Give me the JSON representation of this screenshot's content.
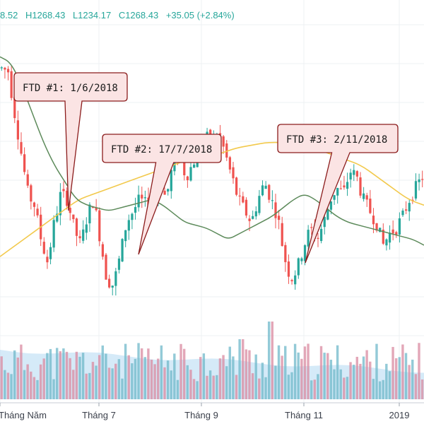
{
  "legend": {
    "open": "8.52",
    "high": "H1268.43",
    "low": "L1234.17",
    "close": "C1268.43",
    "change": "+35.05 (+2.84%)"
  },
  "colors": {
    "up": "#26a69a",
    "down": "#ef5350",
    "ma_short": "#5c8a5a",
    "ma_long": "#f2c94c",
    "callout_fill": "#fbe4e4",
    "callout_stroke": "#8b1c1c",
    "volume_area": "#b3d9f2"
  },
  "chart_data": {
    "type": "candlestick",
    "x_ticks": [
      "Tháng Năm",
      "Tháng 7",
      "Tháng 9",
      "Tháng 11",
      "2019"
    ],
    "annotations": [
      {
        "label": "FTD #1: 1/6/2018",
        "date": "2018-06-01"
      },
      {
        "label": "FTD #2: 17/7/2018",
        "date": "2018-07-17"
      },
      {
        "label": "FTD #3: 2/11/2018",
        "date": "2018-11-02"
      }
    ],
    "last_bar": {
      "high": 1268.43,
      "low": 1234.17,
      "close": 1268.43,
      "change": 35.05,
      "change_pct": 2.84
    },
    "price_path": [
      1230,
      1225,
      1150,
      1080,
      1010,
      990,
      930,
      890,
      960,
      1010,
      1000,
      950,
      920,
      970,
      1000,
      930,
      860,
      850,
      900,
      960,
      980,
      1000,
      990,
      1000,
      1040,
      1000,
      1060,
      1080,
      1040,
      1060,
      1090,
      1110,
      1100,
      1120,
      1080,
      1040,
      1000,
      980,
      960,
      1000,
      1030,
      1000,
      970,
      900,
      860,
      880,
      920,
      950,
      930,
      960,
      1000,
      1020,
      1010,
      1050,
      1040,
      1000,
      980,
      960,
      920,
      940,
      950,
      970,
      1000,
      1020,
      1040
    ],
    "ma_short_path": [
      1250,
      1240,
      1200,
      1150,
      1100,
      1060,
      1030,
      1000,
      990,
      985,
      980,
      985,
      990,
      995,
      1000,
      990,
      975,
      960,
      955,
      950,
      940,
      930,
      940,
      950,
      960,
      970,
      985,
      1000,
      1010,
      1000,
      985,
      970,
      960,
      955,
      950,
      945,
      940,
      935,
      930,
      920
    ],
    "ma_long_path": [
      900,
      920,
      940,
      960,
      980,
      1000,
      1010,
      1020,
      1030,
      1040,
      1050,
      1060,
      1070,
      1075,
      1080,
      1090,
      1095,
      1100,
      1100,
      1095,
      1090,
      1080,
      1070,
      1060,
      1040,
      1020,
      1000,
      990
    ]
  }
}
